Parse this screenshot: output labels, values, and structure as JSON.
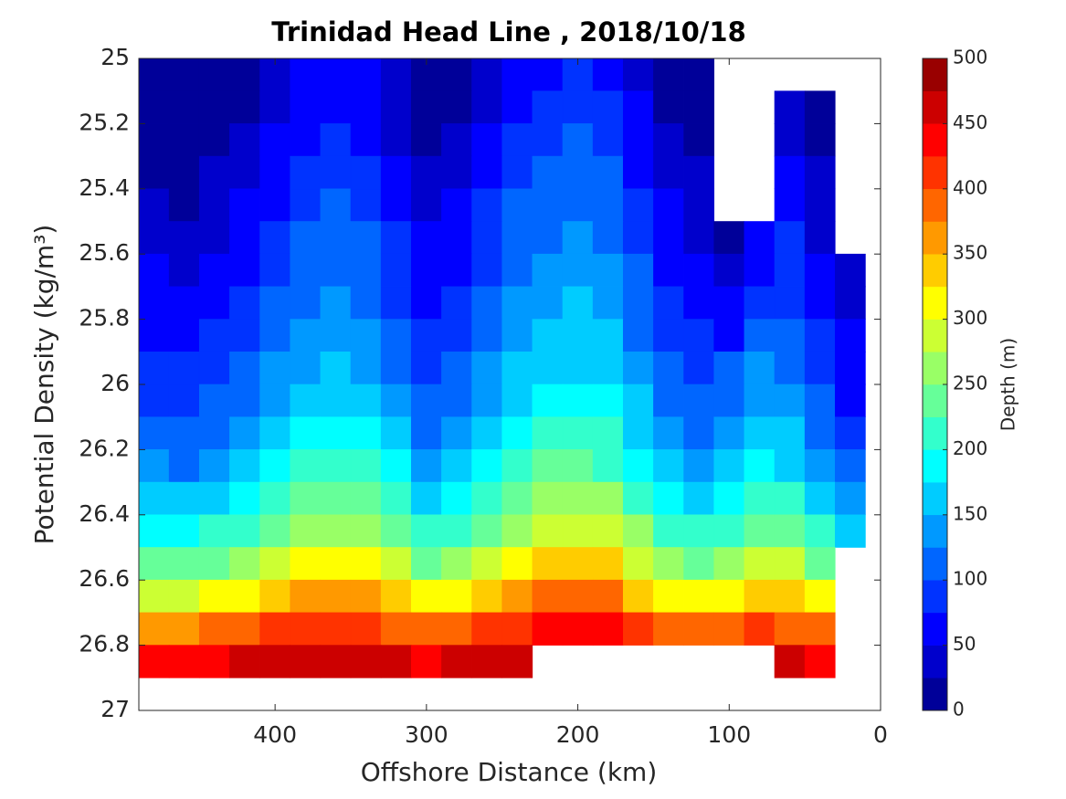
{
  "chart_data": {
    "type": "contourf",
    "title": "Trinidad Head Line , 2018/10/18",
    "xlabel": "Offshore Distance (km)",
    "ylabel": "Potential Density (kg/m³)",
    "colorbar_label": "Depth (m)",
    "xlim": [
      490,
      0
    ],
    "xticks": [
      400,
      300,
      200,
      100,
      0
    ],
    "ylim": [
      25,
      27
    ],
    "yticks": [
      25,
      25.2,
      25.4,
      25.6,
      25.8,
      26,
      26.2,
      26.4,
      26.6,
      26.8,
      27
    ],
    "clim": [
      0,
      500
    ],
    "cticks": [
      0,
      50,
      100,
      150,
      200,
      250,
      300,
      350,
      400,
      450,
      500
    ],
    "colormap": [
      "#000099",
      "#0000cc",
      "#0000ff",
      "#0033ff",
      "#0066ff",
      "#0099ff",
      "#00ccff",
      "#00ffff",
      "#33ffcc",
      "#66ff99",
      "#99ff66",
      "#ccff33",
      "#ffff00",
      "#ffcc00",
      "#ff9900",
      "#ff6600",
      "#ff3300",
      "#ff0000",
      "#cc0000",
      "#990000"
    ],
    "x": [
      480,
      460,
      440,
      420,
      400,
      380,
      360,
      340,
      320,
      300,
      280,
      260,
      240,
      220,
      200,
      180,
      160,
      140,
      120,
      100,
      80,
      60,
      40,
      20
    ],
    "y": [
      25.0,
      25.1,
      25.2,
      25.3,
      25.4,
      25.5,
      25.6,
      25.7,
      25.8,
      25.9,
      26.0,
      26.1,
      26.2,
      26.3,
      26.4,
      26.5,
      26.6,
      26.7,
      26.8
    ],
    "z": [
      [
        10,
        10,
        10,
        14,
        32,
        50,
        60,
        53,
        29,
        10,
        14,
        39,
        60,
        74,
        81,
        71,
        43,
        14,
        10,
        null,
        null,
        null,
        null,
        null
      ],
      [
        10,
        10,
        10,
        24,
        42,
        60,
        70,
        63,
        39,
        10,
        24,
        49,
        70,
        84,
        91,
        81,
        53,
        24,
        10,
        null,
        null,
        35,
        10,
        null
      ],
      [
        10,
        10,
        17,
        34,
        52,
        70,
        80,
        73,
        49,
        20,
        34,
        59,
        80,
        94,
        101,
        91,
        63,
        34,
        17,
        null,
        null,
        45,
        17,
        null
      ],
      [
        20,
        13,
        27,
        44,
        62,
        80,
        90,
        83,
        59,
        30,
        44,
        69,
        90,
        104,
        111,
        101,
        73,
        44,
        27,
        null,
        null,
        55,
        27,
        null
      ],
      [
        30,
        23,
        37,
        54,
        72,
        90,
        100,
        93,
        69,
        40,
        54,
        79,
        100,
        114,
        121,
        111,
        83,
        54,
        37,
        null,
        null,
        65,
        37,
        null
      ],
      [
        40,
        33,
        47,
        64,
        82,
        100,
        110,
        103,
        79,
        50,
        64,
        89,
        110,
        124,
        131,
        121,
        93,
        64,
        47,
        20,
        50,
        75,
        47,
        null
      ],
      [
        50,
        43,
        57,
        74,
        92,
        110,
        120,
        113,
        89,
        60,
        74,
        99,
        120,
        134,
        141,
        131,
        103,
        74,
        57,
        35,
        70,
        85,
        57,
        32
      ],
      [
        60,
        53,
        67,
        84,
        102,
        120,
        130,
        123,
        99,
        70,
        84,
        109,
        130,
        144,
        151,
        141,
        113,
        84,
        67,
        50,
        90,
        95,
        67,
        42
      ],
      [
        70,
        63,
        77,
        94,
        112,
        130,
        140,
        133,
        109,
        80,
        94,
        119,
        140,
        154,
        161,
        151,
        123,
        94,
        77,
        70,
        110,
        105,
        77,
        52
      ],
      [
        83,
        76,
        90,
        107,
        125,
        143,
        153,
        146,
        122,
        93,
        107,
        132,
        153,
        167,
        174,
        164,
        136,
        107,
        90,
        100,
        129,
        118,
        90,
        65
      ],
      [
        92,
        84,
        100,
        120,
        140,
        160,
        172,
        164,
        136,
        104,
        120,
        148,
        172,
        188,
        196,
        184,
        152,
        120,
        100,
        112,
        144,
        132,
        100,
        72
      ],
      [
        110,
        102,
        118,
        138,
        158,
        178,
        190,
        182,
        154,
        122,
        138,
        166,
        190,
        206,
        214,
        202,
        170,
        138,
        118,
        130,
        162,
        150,
        118,
        90
      ],
      [
        132,
        124,
        140,
        160,
        180,
        200,
        212,
        204,
        176,
        144,
        160,
        188,
        212,
        228,
        236,
        224,
        192,
        160,
        140,
        152,
        184,
        172,
        140,
        112
      ],
      [
        160,
        152,
        168,
        188,
        208,
        228,
        240,
        232,
        204,
        172,
        188,
        216,
        240,
        256,
        264,
        252,
        220,
        188,
        168,
        180,
        212,
        200,
        168,
        140
      ],
      [
        192,
        184,
        200,
        220,
        240,
        260,
        272,
        264,
        236,
        204,
        220,
        248,
        272,
        288,
        296,
        284,
        252,
        220,
        200,
        212,
        244,
        232,
        200,
        172
      ],
      [
        235,
        227,
        243,
        263,
        283,
        303,
        315,
        307,
        279,
        247,
        263,
        291,
        315,
        331,
        339,
        327,
        295,
        263,
        243,
        255,
        287,
        275,
        243,
        null
      ],
      [
        295,
        288,
        302,
        319,
        337,
        355,
        365,
        358,
        334,
        305,
        319,
        344,
        365,
        379,
        386,
        376,
        348,
        319,
        302,
        312,
        341,
        330,
        302,
        null
      ],
      [
        370,
        365,
        375,
        387,
        400,
        413,
        420,
        415,
        398,
        377,
        387,
        405,
        420,
        430,
        435,
        428,
        408,
        387,
        375,
        382,
        403,
        395,
        375,
        null
      ],
      [
        443,
        441,
        445,
        451,
        457,
        463,
        467,
        465,
        456,
        447,
        451,
        460,
        467,
        null,
        null,
        null,
        null,
        null,
        null,
        null,
        null,
        455,
        445,
        null
      ]
    ]
  }
}
